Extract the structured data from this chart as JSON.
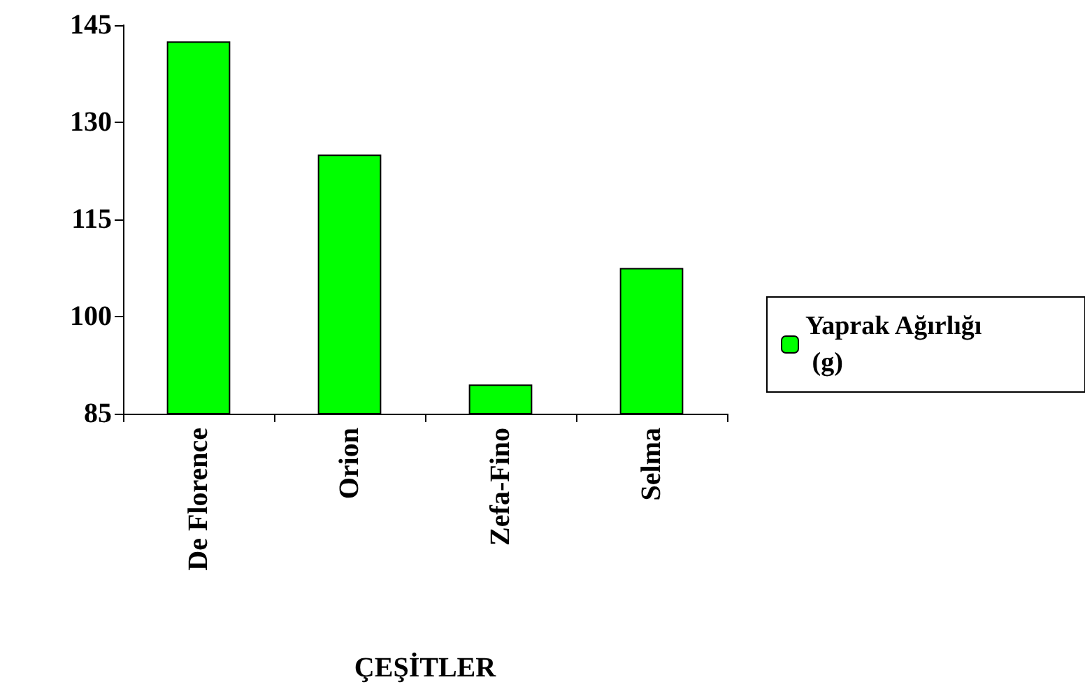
{
  "chart_data": {
    "type": "bar",
    "xlabel": "ÇEŞİTLER",
    "categories": [
      "De Florence",
      "Orion",
      "Zefa-Fino",
      "Selma"
    ],
    "series": [
      {
        "name": "Yaprak Ağırlığı (g)",
        "color": "#00ff00",
        "values": [
          142.5,
          125,
          89.5,
          107.5
        ]
      }
    ],
    "ylim": [
      85,
      145
    ],
    "yticks": [
      85,
      100,
      115,
      130,
      145
    ],
    "grid": false,
    "legend": "right"
  }
}
